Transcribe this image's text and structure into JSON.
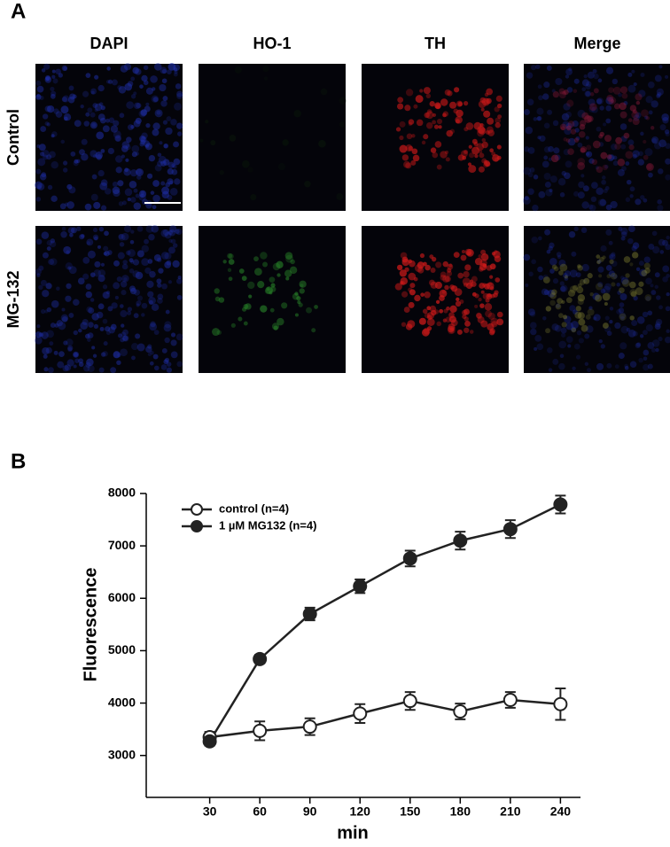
{
  "panel_a": {
    "label": "A",
    "columns": [
      "DAPI",
      "HO-1",
      "TH",
      "Merge"
    ],
    "rows": [
      "Control",
      "MG-132"
    ]
  },
  "chart_data": {
    "type": "line",
    "panel_label": "B",
    "x_label": "min",
    "y_label": "Fluorescence",
    "x": [
      30,
      60,
      90,
      120,
      150,
      180,
      210,
      240
    ],
    "series": [
      {
        "name": "control (n=4)",
        "color": "#ffffff",
        "values": [
          3350,
          3470,
          3550,
          3800,
          4040,
          3840,
          4060,
          3980
        ],
        "errors": [
          100,
          180,
          160,
          180,
          170,
          150,
          150,
          300
        ]
      },
      {
        "name": "1 µM MG132 (n=4)",
        "color": "#222222",
        "values": [
          3270,
          4840,
          5700,
          6230,
          6760,
          7100,
          7320,
          7790
        ],
        "errors": [
          80,
          80,
          120,
          130,
          150,
          170,
          170,
          170
        ]
      }
    ],
    "xlim": [
      -8,
      252
    ],
    "ylim": [
      2200,
      8000
    ],
    "xticks": [
      30,
      60,
      90,
      120,
      150,
      180,
      210,
      240
    ],
    "yticks": [
      3000,
      4000,
      5000,
      6000,
      7000,
      8000
    ],
    "legend": "upper left",
    "grid": false
  }
}
